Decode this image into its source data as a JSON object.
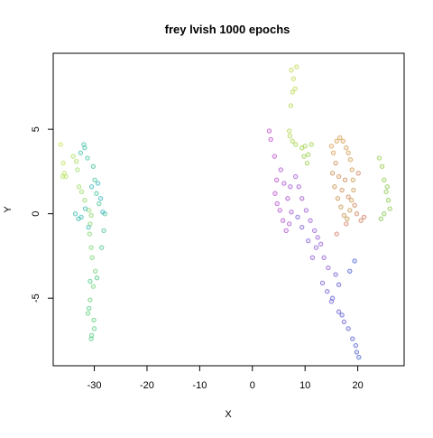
{
  "chart_data": {
    "type": "scatter",
    "title": "frey lvish 1000 epochs",
    "xlabel": "X",
    "ylabel": "Y",
    "xlim": [
      -37.8,
      28.8
    ],
    "ylim": [
      -9.0,
      9.5
    ],
    "xticks": [
      -30,
      -20,
      -10,
      0,
      10,
      20
    ],
    "yticks": [
      -5,
      0,
      5
    ],
    "grid": false,
    "legend": "none",
    "point_style": "open circles, semi-transparent, colored by point index",
    "clusters": [
      {
        "x": [
          -36.4,
          -35.9,
          -35.7,
          -36.0,
          -35.4,
          -34.0,
          -33.4,
          -33.2,
          -32.9,
          -32.4,
          -31.8,
          -31.0,
          -30.6,
          -30.8,
          -30.9,
          -30.6,
          -30.4,
          -29.8,
          -30.2,
          -30.8,
          -31.2,
          -30.1,
          -30.0,
          -30.5,
          -30.6,
          -31.0,
          -30.8,
          -29.5,
          -28.6,
          -28.2,
          -28.0,
          -29.1,
          -29.6,
          -29.9,
          -30.2,
          -31.3,
          -31.8,
          -32.0,
          -32.6,
          -33.6,
          -33.0,
          -32.5,
          -31.7,
          -31.1,
          -30.5,
          -29.3,
          -28.8,
          -28.4
        ],
        "y": [
          4.1,
          3.0,
          2.4,
          2.2,
          2.2,
          3.4,
          3.1,
          2.6,
          1.6,
          1.3,
          0.8,
          0.2,
          -0.1,
          -0.6,
          -1.2,
          -2.0,
          -2.6,
          -3.4,
          -4.3,
          -5.1,
          -5.9,
          -6.3,
          -6.8,
          -7.2,
          -7.4,
          -5.6,
          -4.0,
          -3.8,
          -2.0,
          -1.0,
          0.0,
          0.6,
          1.2,
          2.0,
          2.8,
          3.3,
          3.9,
          4.1,
          3.6,
          0.0,
          -0.3,
          -0.2,
          0.3,
          -0.8,
          1.6,
          1.8,
          0.9,
          0.1
        ],
        "color_group": "green-teal"
      },
      {
        "x": [
          7.4,
          7.8,
          8.1,
          8.4,
          7.6,
          7.3,
          7.0,
          7.1,
          7.6,
          8.2,
          9.4,
          10.0,
          10.6,
          11.2,
          9.8,
          10.4,
          24.1,
          24.6,
          25.0,
          25.4,
          25.8,
          26.1,
          25.6,
          25.0,
          24.4
        ],
        "y": [
          8.5,
          8.0,
          7.4,
          8.7,
          7.2,
          6.4,
          4.9,
          4.6,
          4.3,
          4.1,
          3.9,
          4.0,
          3.5,
          4.1,
          3.4,
          3.0,
          3.3,
          2.8,
          2.0,
          1.3,
          0.8,
          0.3,
          1.6,
          0.0,
          -0.3
        ],
        "color_group": "yellow-green"
      },
      {
        "x": [
          3.2,
          3.5,
          4.2,
          4.6,
          4.3,
          4.7,
          5.2,
          5.8,
          6.4,
          6.0,
          5.4,
          6.7,
          7.0,
          7.4,
          7.2,
          8.2,
          8.8,
          9.4,
          10.2,
          11.0,
          11.8,
          12.4,
          13.0,
          13.6,
          14.4,
          12.1,
          11.4,
          10.6,
          9.4,
          8.6,
          13.3,
          14.2,
          15.0,
          16.4,
          17.4,
          15.8,
          16.4,
          15.2,
          17.0,
          18.2,
          19.0,
          19.6,
          19.8,
          20.2,
          18.5,
          19.4
        ],
        "y": [
          4.9,
          4.4,
          3.4,
          2.0,
          1.2,
          0.6,
          0.2,
          -0.4,
          -1.0,
          1.8,
          2.6,
          0.9,
          -0.6,
          0.1,
          1.6,
          2.2,
          1.6,
          0.9,
          0.2,
          -0.4,
          -1.0,
          -1.4,
          -1.8,
          -2.6,
          -3.2,
          -2.0,
          -2.6,
          -1.6,
          -0.8,
          -0.2,
          -4.1,
          -4.6,
          -5.2,
          -5.8,
          -6.4,
          -3.6,
          -4.2,
          -5.0,
          -6.0,
          -6.8,
          -7.4,
          -7.8,
          -8.2,
          -8.5,
          -3.4,
          -2.8
        ],
        "color_group": "purple-blue"
      },
      {
        "x": [
          15.0,
          15.4,
          16.0,
          16.6,
          17.2,
          17.8,
          18.2,
          18.6,
          18.9,
          19.1,
          19.2,
          18.8,
          18.5,
          18.0,
          17.4,
          16.8,
          16.2,
          15.6,
          15.2,
          15.8,
          16.4,
          17.0,
          17.6,
          18.2,
          19.4,
          19.8,
          20.1,
          20.6,
          21.2,
          17.8,
          16.0
        ],
        "y": [
          4.0,
          3.6,
          4.3,
          4.5,
          4.3,
          3.9,
          3.6,
          3.2,
          2.6,
          2.0,
          1.4,
          0.8,
          0.2,
          -0.3,
          -0.1,
          0.4,
          0.9,
          1.6,
          2.4,
          3.0,
          2.2,
          1.4,
          2.0,
          1.0,
          0.5,
          0.0,
          2.4,
          -0.4,
          -0.2,
          -0.6,
          -1.2
        ],
        "color_group": "orange-brown"
      }
    ]
  }
}
